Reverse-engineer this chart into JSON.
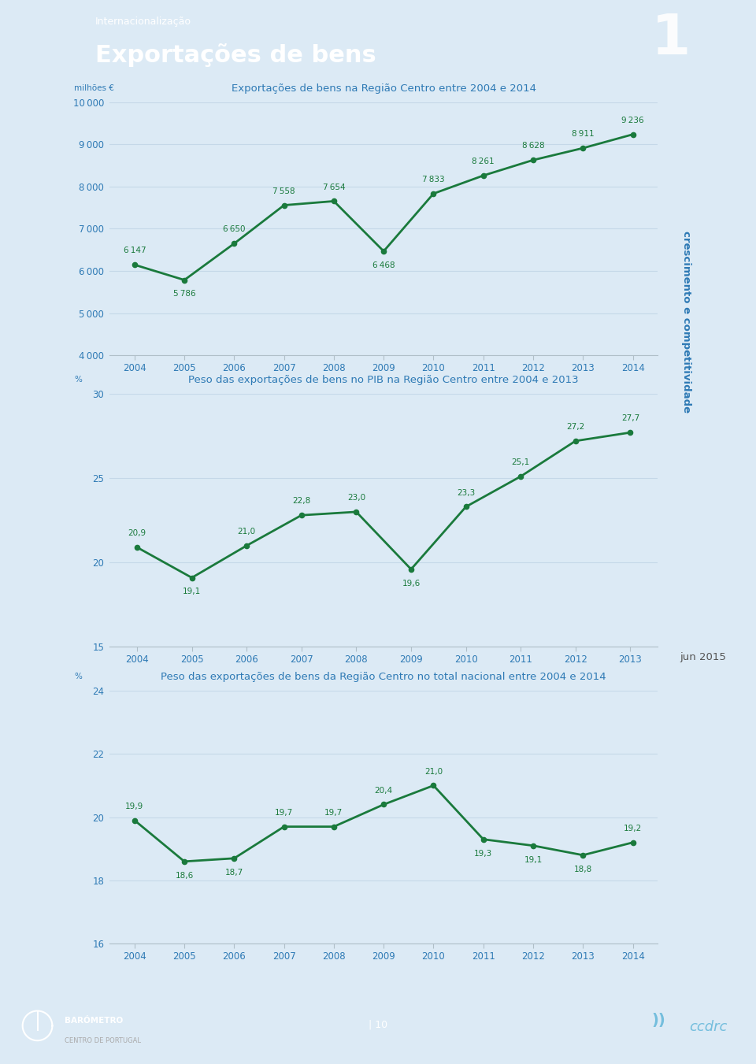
{
  "page_bg": "#dceaf5",
  "header_bg": "#2e7ab5",
  "header_subtitle": "Internacionalização",
  "header_title": "Exportações de bens",
  "header_number": "1",
  "sidebar_bg": "#74bedd",
  "sidebar_text": "crescimento e competitividade",
  "sidebar_text_color": "#2e7ab5",
  "jun2015_text": "jun 2015",
  "chart1_title": "Exportações de bens na Região Centro entre 2004 e 2014",
  "chart1_ylabel": "milhões €",
  "chart1_years": [
    2004,
    2005,
    2006,
    2007,
    2008,
    2009,
    2010,
    2011,
    2012,
    2013,
    2014
  ],
  "chart1_values": [
    6147,
    5786,
    6650,
    7558,
    7654,
    6468,
    7833,
    8261,
    8628,
    8911,
    9236
  ],
  "chart1_ylim": [
    4000,
    10000
  ],
  "chart1_yticks": [
    4000,
    5000,
    6000,
    7000,
    8000,
    9000,
    10000
  ],
  "chart2_title": "Peso das exportações de bens no PIB na Região Centro entre 2004 e 2013",
  "chart2_ylabel": "%",
  "chart2_years": [
    2004,
    2005,
    2006,
    2007,
    2008,
    2009,
    2010,
    2011,
    2012,
    2013
  ],
  "chart2_values": [
    20.9,
    19.1,
    21.0,
    22.8,
    23.0,
    19.6,
    23.3,
    25.1,
    27.2,
    27.7
  ],
  "chart2_ylim": [
    15,
    30
  ],
  "chart2_yticks": [
    15,
    20,
    25,
    30
  ],
  "chart3_title": "Peso das exportações de bens da Região Centro no total nacional entre 2004 e 2014",
  "chart3_ylabel": "%",
  "chart3_years": [
    2004,
    2005,
    2006,
    2007,
    2008,
    2009,
    2010,
    2011,
    2012,
    2013,
    2014
  ],
  "chart3_values": [
    19.9,
    18.6,
    18.7,
    19.7,
    19.7,
    20.4,
    21.0,
    19.3,
    19.1,
    18.8,
    19.2
  ],
  "chart3_ylim": [
    16,
    24
  ],
  "chart3_yticks": [
    16,
    18,
    20,
    22,
    24
  ],
  "line_color": "#1a7a3c",
  "title_color": "#2e7ab5",
  "tick_label_color": "#2e7ab5",
  "grid_color": "#c5d8e8",
  "annotation_color": "#1a7a3c",
  "footer_bg": "#404040",
  "footer_text": "| 10",
  "chart1_annot_above": [
    true,
    false,
    true,
    true,
    true,
    false,
    true,
    true,
    true,
    true,
    true
  ],
  "chart2_annot_above": [
    true,
    false,
    true,
    true,
    true,
    false,
    true,
    true,
    true,
    true
  ],
  "chart3_annot_above": [
    true,
    false,
    false,
    true,
    true,
    true,
    true,
    false,
    false,
    false,
    true
  ]
}
